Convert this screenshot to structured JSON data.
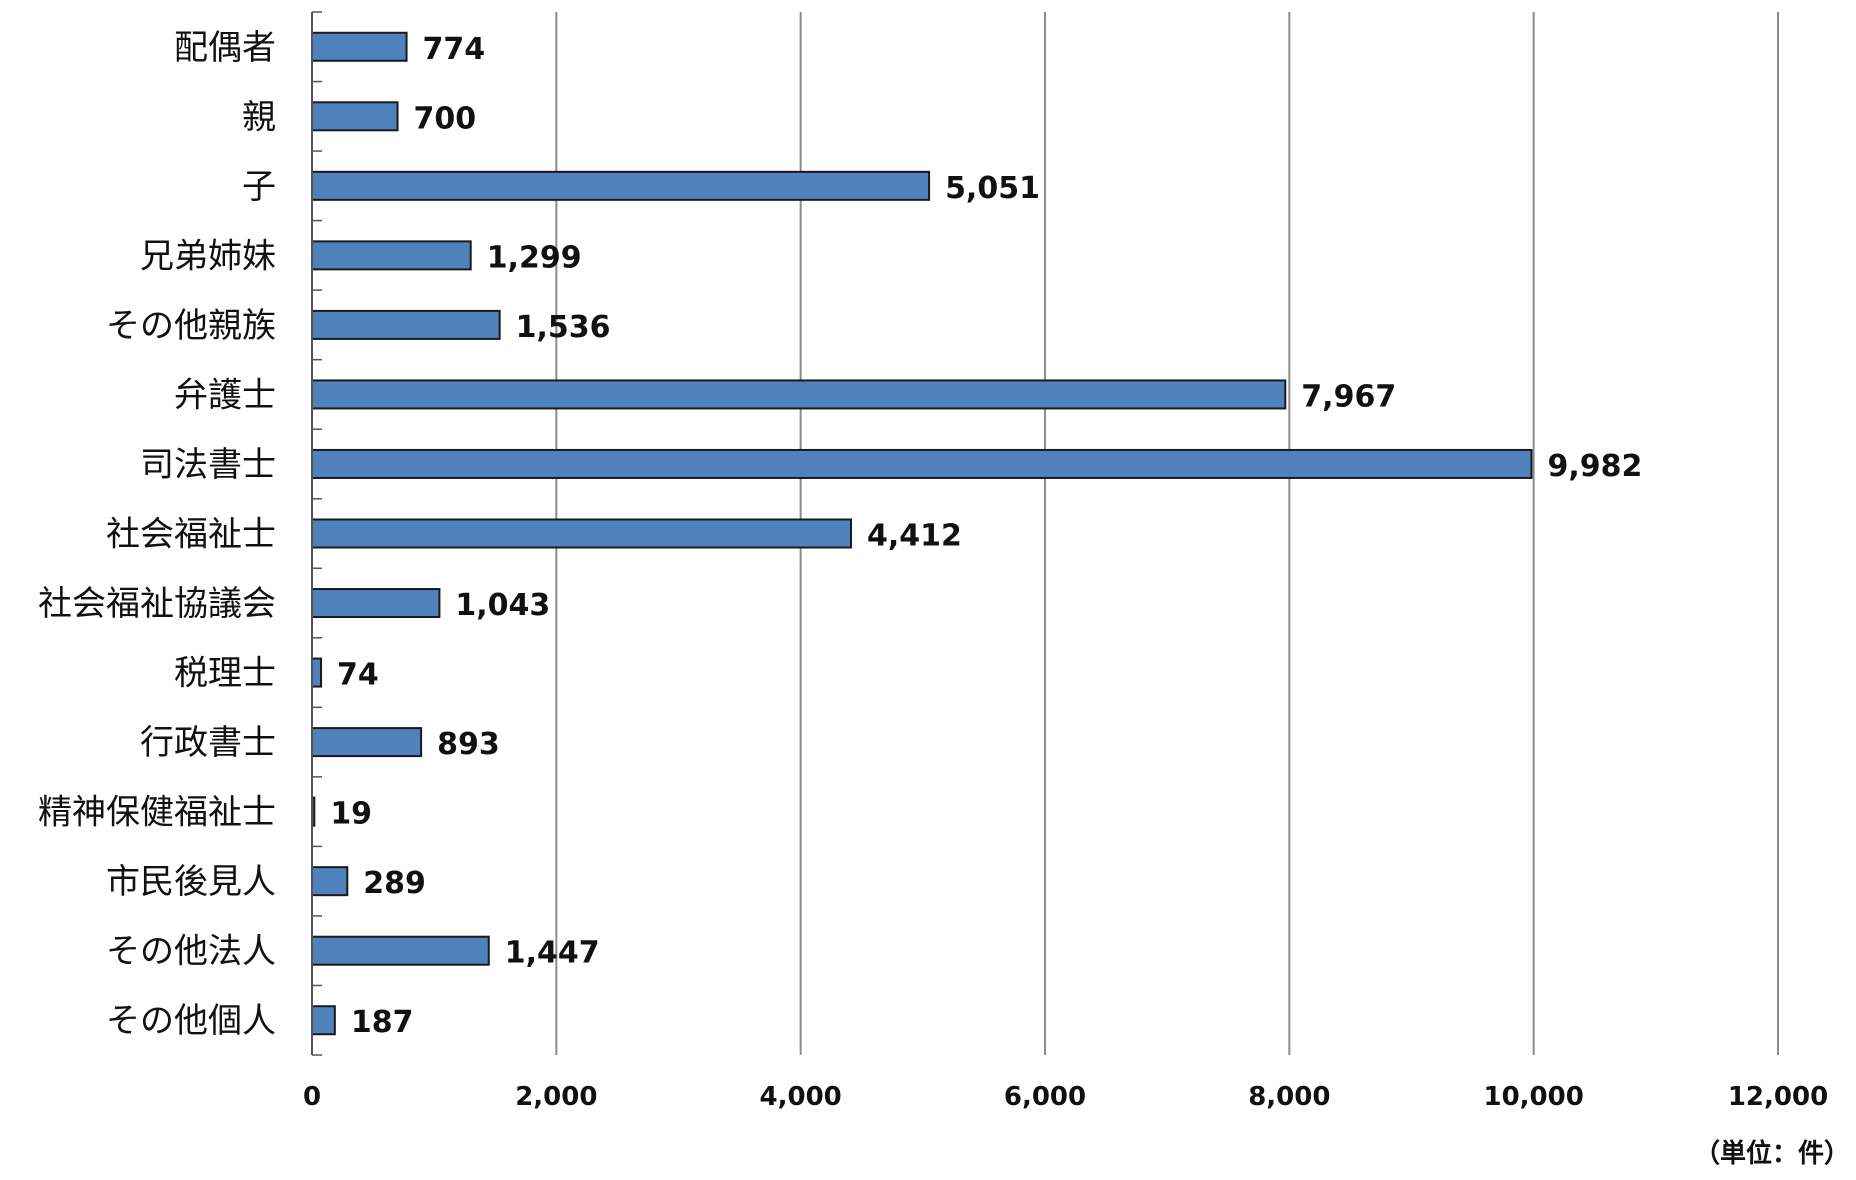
{
  "chart_data": {
    "type": "bar",
    "orientation": "horizontal",
    "categories": [
      "配偶者",
      "親",
      "子",
      "兄弟姉妹",
      "その他親族",
      "弁護士",
      "司法書士",
      "社会福祉士",
      "社会福祉協議会",
      "税理士",
      "行政書士",
      "精神保健福祉士",
      "市民後見人",
      "その他法人",
      "その他個人"
    ],
    "values": [
      774,
      700,
      5051,
      1299,
      1536,
      7967,
      9982,
      4412,
      1043,
      74,
      893,
      19,
      289,
      1447,
      187
    ],
    "data_labels": [
      "774",
      "700",
      "5,051",
      "1,299",
      "1,536",
      "7,967",
      "9,982",
      "4,412",
      "1,043",
      "74",
      "893",
      "19",
      "289",
      "1,447",
      "187"
    ],
    "xlim": [
      0,
      12000
    ],
    "x_ticks": [
      0,
      2000,
      4000,
      6000,
      8000,
      10000,
      12000
    ],
    "x_tick_labels": [
      "0",
      "2,000",
      "4,000",
      "6,000",
      "8,000",
      "10,000",
      "12,000"
    ],
    "unit_label": "（単位：件）",
    "title": "",
    "xlabel": "",
    "ylabel": "",
    "grid": "vertical",
    "legend": "none",
    "bar_color": "#4f81bd",
    "bar_border_color": "#1a1a1a",
    "grid_color": "#8c8c8c"
  }
}
